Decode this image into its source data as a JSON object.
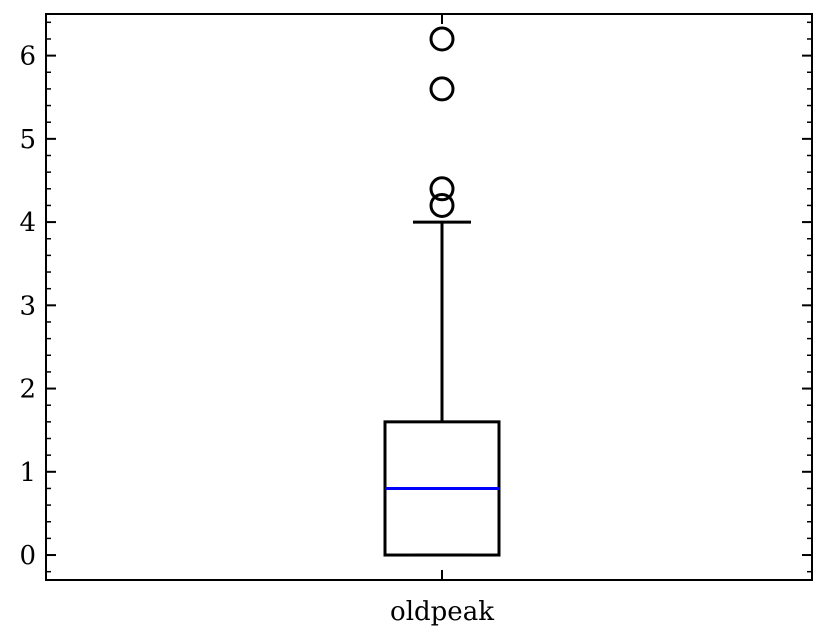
{
  "chart_data": {
    "type": "boxplot",
    "title": "",
    "xlabel": "",
    "ylabel": "",
    "categories": [
      "oldpeak"
    ],
    "ylim": [
      -0.3,
      6.5
    ],
    "yticks": [
      0,
      1,
      2,
      3,
      4,
      5,
      6
    ],
    "grid": false,
    "boxes": [
      {
        "category": "oldpeak",
        "whisker_low": 0,
        "q1": 0,
        "median": 0.8,
        "q3": 1.6,
        "whisker_high": 4.0,
        "outliers": [
          4.2,
          4.4,
          5.6,
          6.2
        ]
      }
    ],
    "colors": {
      "box": "#000000",
      "median": "#0000ff",
      "axes": "#000000"
    }
  }
}
